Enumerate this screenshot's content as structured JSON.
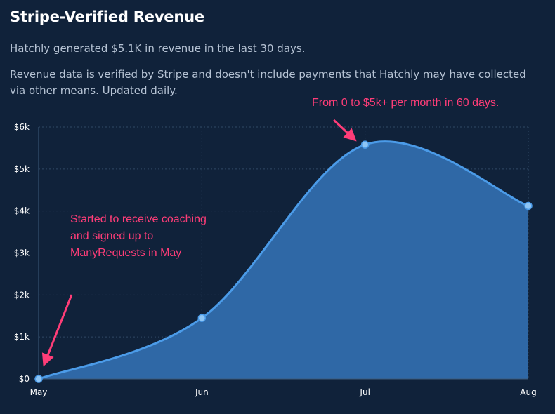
{
  "header": {
    "title": "Stripe-Verified Revenue",
    "subtitle": "Hatchly generated $5.1K in revenue in the last 30 days.",
    "description": "Revenue data is verified by Stripe and doesn't include payments that Hatchly may have collected via other means. Updated daily."
  },
  "annotations": {
    "top": "From 0 to $5k+ per month in 60 days.",
    "left": "Started to receive coaching and signed up to ManyRequests in May"
  },
  "colors": {
    "background": "#10223a",
    "area_fill": "#2f68a6",
    "line": "#4b9be8",
    "marker": "#8ec5f5",
    "annotation": "#ff3d78",
    "grid": "#304a66",
    "tick_text": "#ffffff"
  },
  "chart_data": {
    "type": "area",
    "x": [
      "May",
      "Jun",
      "Jul",
      "Aug"
    ],
    "series": [
      {
        "values": [
          0,
          1450,
          5580,
          4120
        ]
      }
    ],
    "y_ticks": [
      "$0",
      "$1k",
      "$2k",
      "$3k",
      "$4k",
      "$5k",
      "$6k"
    ],
    "ylim": [
      0,
      6000
    ],
    "grid": true,
    "markers": true
  }
}
